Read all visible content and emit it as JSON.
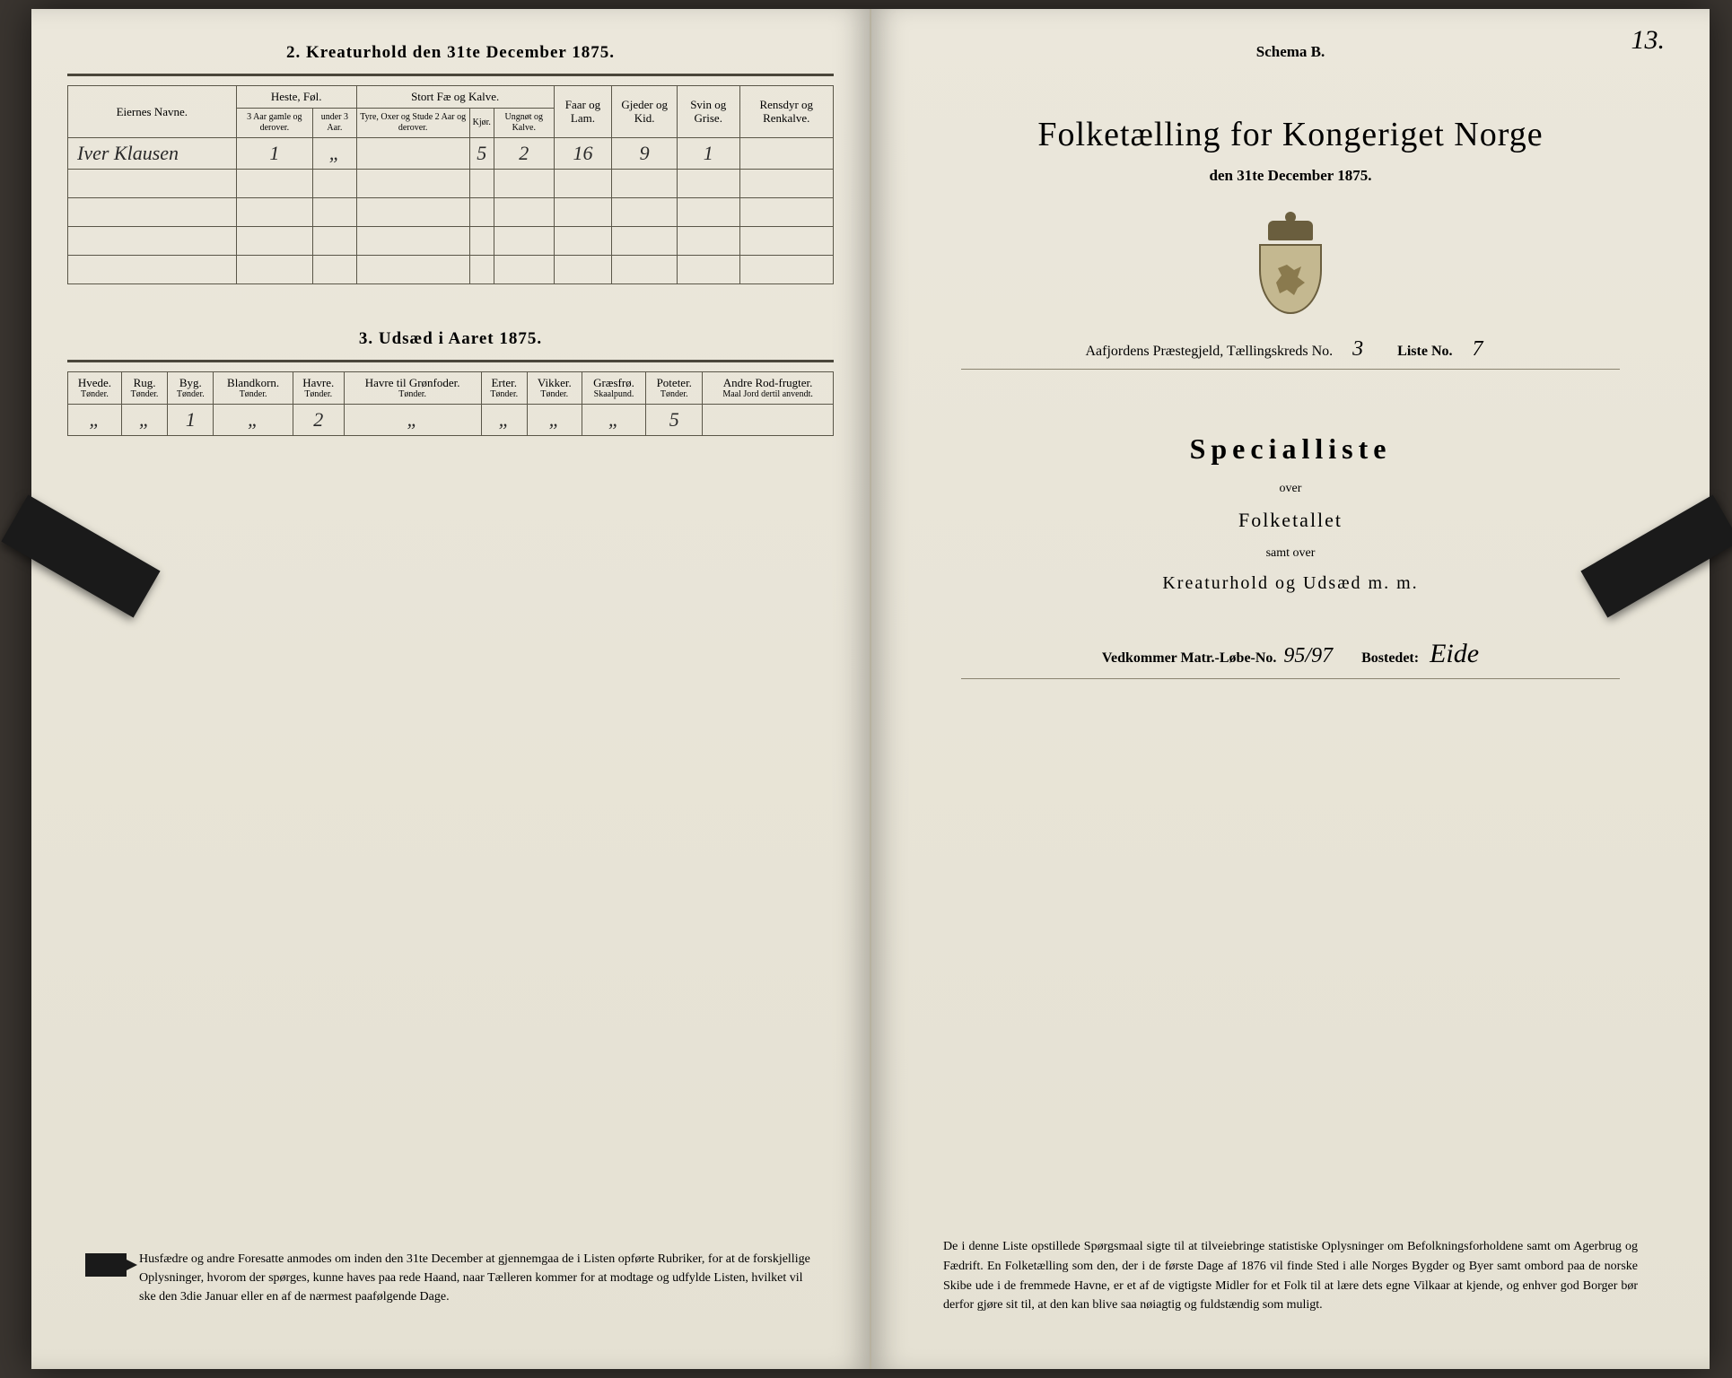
{
  "page_number_handwritten": "13.",
  "left": {
    "section2_title": "2.  Kreaturhold den 31te December 1875.",
    "table2": {
      "headers": {
        "eier": "Eiernes Navne.",
        "heste_group": "Heste, Føl.",
        "stort_group": "Stort Fæ og Kalve.",
        "heste_a": "3 Aar gamle og derover.",
        "heste_b": "under 3 Aar.",
        "tyre": "Tyre, Oxer og Stude 2 Aar og derover.",
        "kjor": "Kjør.",
        "ungnot": "Ungnøt og Kalve.",
        "faar": "Faar og Lam.",
        "gjeder": "Gjeder og Kid.",
        "svin": "Svin og Grise.",
        "rensdyr": "Rensdyr og Renkalve."
      },
      "row": {
        "name": "Iver Klausen",
        "heste_a": "1",
        "heste_b": "„",
        "tyre": "",
        "kjor": "5",
        "ungnot": "2",
        "faar": "16",
        "gjeder": "9",
        "svin": "1",
        "rensdyr": ""
      }
    },
    "section3_title": "3.  Udsæd i Aaret 1875.",
    "table3": {
      "cols": [
        {
          "h": "Hvede.",
          "u": "Tønder."
        },
        {
          "h": "Rug.",
          "u": "Tønder."
        },
        {
          "h": "Byg.",
          "u": "Tønder."
        },
        {
          "h": "Blandkorn.",
          "u": "Tønder."
        },
        {
          "h": "Havre.",
          "u": "Tønder."
        },
        {
          "h": "Havre til Grønfoder.",
          "u": "Tønder."
        },
        {
          "h": "Erter.",
          "u": "Tønder."
        },
        {
          "h": "Vikker.",
          "u": "Tønder."
        },
        {
          "h": "Græsfrø.",
          "u": "Skaalpund."
        },
        {
          "h": "Poteter.",
          "u": "Tønder."
        },
        {
          "h": "Andre Rod-frugter.",
          "u": "Maal Jord dertil anvendt."
        }
      ],
      "row": [
        "„",
        "„",
        "1",
        "„",
        "2",
        "„",
        "„",
        "„",
        "„",
        "5",
        ""
      ]
    },
    "footer_note": "Husfædre og andre Foresatte anmodes om inden den 31te December at gjennemgaa de i Listen opførte Rubriker, for at de forskjellige Oplysninger, hvorom der spørges, kunne haves paa rede Haand, naar Tælleren kommer for at modtage og udfylde Listen, hvilket vil ske den 3die Januar eller en af de nærmest paafølgende Dage."
  },
  "right": {
    "schema": "Schema B.",
    "title": "Folketælling for Kongeriget Norge",
    "date_line": "den 31te December 1875.",
    "meta": {
      "praeste": "Aafjordens Præstegjeld,  Tællingskreds No.",
      "kreds_no": "3",
      "liste_label": "Liste No.",
      "liste_no": "7"
    },
    "special": "Specialliste",
    "over": "over",
    "folketallet": "Folketallet",
    "samt": "samt over",
    "kreatur": "Kreaturhold og Udsæd  m. m.",
    "vedk": {
      "label1": "Vedkommer Matr.-Løbe-No.",
      "num": "95/97",
      "label2": "Bostedet:",
      "bosted": "Eide"
    },
    "footer": "De i denne Liste opstillede Spørgsmaal sigte til at tilveiebringe statistiske Oplysninger om Befolkningsforholdene samt om Agerbrug og Fædrift.  En Folketælling som den, der i de første Dage af 1876 vil finde Sted i alle Norges Bygder og Byer samt ombord paa de norske Skibe ude i de fremmede Havne, er et af de vigtigste Midler for et Folk til at lære dets egne Vilkaar at kjende, og enhver god Borger bør derfor gjøre sit til, at den kan blive saa nøiagtig og fuldstændig som muligt."
  },
  "colors": {
    "paper": "#e8e4d8",
    "ink": "#2a2a2a",
    "rule": "#5a5648",
    "background": "#3a3530"
  }
}
